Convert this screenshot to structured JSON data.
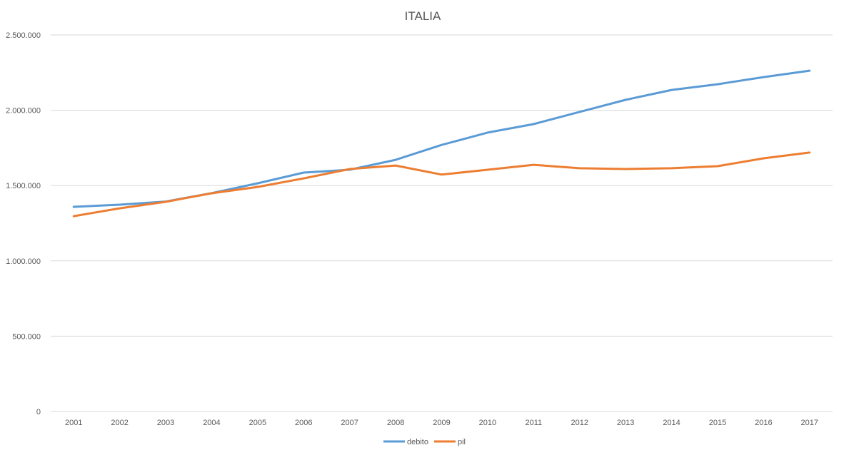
{
  "chart_data": {
    "type": "line",
    "title": "ITALIA",
    "xlabel": "",
    "ylabel": "",
    "ylim": [
      0,
      2500000
    ],
    "yticks": [
      0,
      500000,
      1000000,
      1500000,
      2000000,
      2500000
    ],
    "ytick_labels": [
      "0",
      "500.000",
      "1.000.000",
      "1.500.000",
      "2.000.000",
      "2.500.000"
    ],
    "grid": true,
    "legend_position": "bottom",
    "categories": [
      "2001",
      "2002",
      "2003",
      "2004",
      "2005",
      "2006",
      "2007",
      "2008",
      "2009",
      "2010",
      "2011",
      "2012",
      "2013",
      "2014",
      "2015",
      "2016",
      "2017"
    ],
    "series": [
      {
        "name": "debito",
        "color": "#5B9BD5",
        "values": [
          1359000,
          1373000,
          1394000,
          1450000,
          1515000,
          1586000,
          1605000,
          1671000,
          1770000,
          1852000,
          1908000,
          1989000,
          2069000,
          2135000,
          2173000,
          2220000,
          2263000
        ]
      },
      {
        "name": "pil",
        "color": "#ED7D31",
        "values": [
          1297000,
          1349000,
          1392000,
          1449000,
          1491000,
          1548000,
          1610000,
          1633000,
          1573000,
          1605000,
          1638000,
          1615000,
          1610000,
          1615000,
          1629000,
          1681000,
          1719000
        ]
      }
    ]
  }
}
